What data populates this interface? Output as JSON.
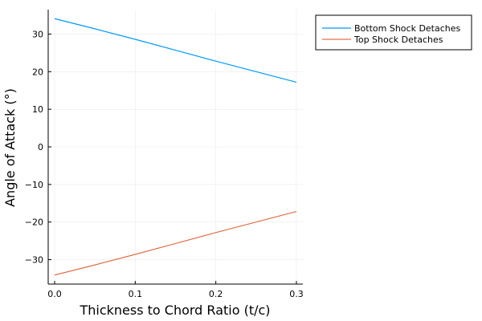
{
  "chart_data": {
    "type": "line",
    "title": "",
    "xlabel": "Thickness to Chord Ratio (t/c)",
    "ylabel": "Angle of Attack (°)",
    "xlim": [
      -0.008,
      0.308
    ],
    "ylim": [
      -36.5,
      36.5
    ],
    "xticks": [
      0.0,
      0.1,
      0.2,
      0.3
    ],
    "xtick_labels": [
      "0.0",
      "0.1",
      "0.2",
      "0.3"
    ],
    "yticks": [
      -30,
      -20,
      -10,
      0,
      10,
      20,
      30
    ],
    "ytick_labels": [
      "−30",
      "−20",
      "−10",
      "0",
      "10",
      "20",
      "30"
    ],
    "grid": true,
    "legend_position": "outside-top-right",
    "series": [
      {
        "name": "Bottom Shock Detaches",
        "color": "#009AFA",
        "x": [
          0.0,
          0.05,
          0.1,
          0.15,
          0.2,
          0.25,
          0.3
        ],
        "y": [
          34.1,
          31.4,
          28.6,
          25.7,
          22.8,
          20.0,
          17.2
        ]
      },
      {
        "name": "Top Shock Detaches",
        "color": "#E36F47",
        "x": [
          0.0,
          0.05,
          0.1,
          0.15,
          0.2,
          0.25,
          0.3
        ],
        "y": [
          -34.1,
          -31.4,
          -28.6,
          -25.7,
          -22.8,
          -20.0,
          -17.2
        ]
      }
    ]
  }
}
